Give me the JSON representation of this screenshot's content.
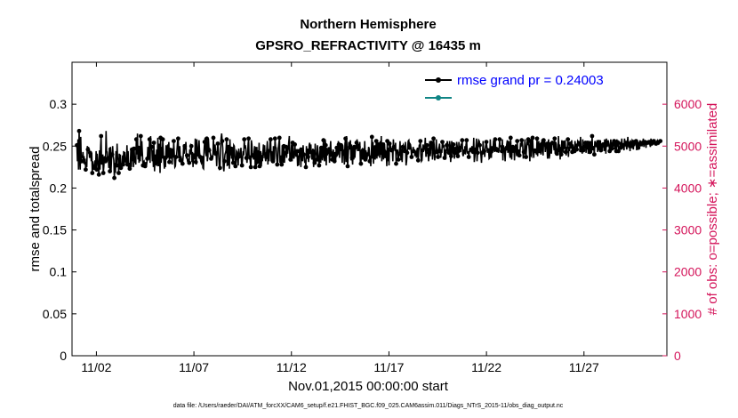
{
  "chart_data": {
    "type": "line",
    "title": "Northern Hemisphere",
    "subtitle": "GPSRO_REFRACTIVITY @ 16435 m",
    "xlabel": "Nov.01,2015 00:00:00 start",
    "ylabel": "rmse and totalspread",
    "y2label": "# of obs: o=possible; ∗=assimilated",
    "footnote": "data file: /Users/raeder/DAI/ATM_forcXX/CAM6_setup/f.e21.FHIST_BGC.f09_025.CAM6assim.011/Diags_NTrS_2015-11/obs_diag_output.nc",
    "x_ticks": [
      "11/02",
      "11/07",
      "11/12",
      "11/17",
      "11/22",
      "11/27"
    ],
    "x_tick_days": [
      2,
      7,
      12,
      17,
      22,
      27
    ],
    "xlim_days": [
      0.75,
      31.25
    ],
    "ylim": [
      0,
      0.35
    ],
    "y_ticks": [
      "0",
      "0.05",
      "0.1",
      "0.15",
      "0.2",
      "0.25",
      "0.3"
    ],
    "y2lim": [
      0,
      7000
    ],
    "y2_ticks": [
      "0",
      "1000",
      "2000",
      "3000",
      "4000",
      "5000",
      "6000"
    ],
    "colors": {
      "rmse": "#000000",
      "spread": "#108585",
      "obs": "#d4145a",
      "legend_text": "#0000ff"
    },
    "series": [
      {
        "name": "rmse grand pr = 0.24003",
        "values": [
          0.251,
          0.232,
          0.258,
          0.222,
          0.268,
          0.238,
          0.222,
          0.261,
          0.232,
          0.238,
          0.236,
          0.243,
          0.232,
          0.238,
          0.228,
          0.235,
          0.222,
          0.231,
          0.225,
          0.25,
          0.246,
          0.249,
          0.244,
          0.236,
          0.242,
          0.241,
          0.232,
          0.242,
          0.218,
          0.232,
          0.226,
          0.222,
          0.224,
          0.233,
          0.225,
          0.244,
          0.222,
          0.241,
          0.232,
          0.229,
          0.216,
          0.245,
          0.222,
          0.249,
          0.262,
          0.228,
          0.23,
          0.24,
          0.218,
          0.226,
          0.238,
          0.232,
          0.232,
          0.268,
          0.244,
          0.243,
          0.235,
          0.238,
          0.224,
          0.248,
          0.22,
          0.249,
          0.221,
          0.236,
          0.24,
          0.25,
          0.238,
          0.233,
          0.212,
          0.23,
          0.218,
          0.244,
          0.227,
          0.253,
          0.234,
          0.236,
          0.218,
          0.241,
          0.226,
          0.24,
          0.224,
          0.226,
          0.223,
          0.239,
          0.228,
          0.244,
          0.229,
          0.243,
          0.233,
          0.234,
          0.228,
          0.251,
          0.228,
          0.244,
          0.222,
          0.23,
          0.223,
          0.227,
          0.245,
          0.225,
          0.246,
          0.232,
          0.249,
          0.225,
          0.247,
          0.23,
          0.237,
          0.228,
          0.258,
          0.24,
          0.265,
          0.234,
          0.248,
          0.23,
          0.25,
          0.232,
          0.262,
          0.238,
          0.256,
          0.242,
          0.227,
          0.231,
          0.232,
          0.228,
          0.226,
          0.231,
          0.225,
          0.23,
          0.235,
          0.249,
          0.236,
          0.237,
          0.258,
          0.23,
          0.262,
          0.247,
          0.249,
          0.232,
          0.245,
          0.225,
          0.254,
          0.22,
          0.24,
          0.227,
          0.231,
          0.246,
          0.226,
          0.26,
          0.239,
          0.226,
          0.253,
          0.218,
          0.26,
          0.23,
          0.249,
          0.235,
          0.258,
          0.24,
          0.232,
          0.223,
          0.236,
          0.225,
          0.251,
          0.234,
          0.238,
          0.252,
          0.238,
          0.255,
          0.231,
          0.243,
          0.248,
          0.235,
          0.245,
          0.228,
          0.247,
          0.236,
          0.256,
          0.238,
          0.225,
          0.226,
          0.237,
          0.237,
          0.246,
          0.257,
          0.259,
          0.236,
          0.236,
          0.25,
          0.233,
          0.238,
          0.235,
          0.232,
          0.229,
          0.237,
          0.252,
          0.241,
          0.25,
          0.246,
          0.255,
          0.235,
          0.239,
          0.232,
          0.231,
          0.235,
          0.23,
          0.246,
          0.24,
          0.251,
          0.25,
          0.231,
          0.243,
          0.225,
          0.239,
          0.238,
          0.234,
          0.259,
          0.231,
          0.228,
          0.258,
          0.243,
          0.24,
          0.245,
          0.257,
          0.242,
          0.237,
          0.232,
          0.23,
          0.233,
          0.236,
          0.224,
          0.223,
          0.245,
          0.255,
          0.26,
          0.242,
          0.238,
          0.259,
          0.232,
          0.237,
          0.259,
          0.245,
          0.248,
          0.242,
          0.239,
          0.235,
          0.239,
          0.235,
          0.237,
          0.26,
          0.245,
          0.242,
          0.252,
          0.241,
          0.242,
          0.226,
          0.245,
          0.253,
          0.245,
          0.234,
          0.223,
          0.224,
          0.245,
          0.26,
          0.265,
          0.256,
          0.248,
          0.226,
          0.22,
          0.232,
          0.24,
          0.242,
          0.245,
          0.258,
          0.226,
          0.251,
          0.227,
          0.249,
          0.223,
          0.258,
          0.239,
          0.247,
          0.235,
          0.249,
          0.232,
          0.23,
          0.251,
          0.25,
          0.238,
          0.226,
          0.226,
          0.244,
          0.243,
          0.236,
          0.227,
          0.247,
          0.237,
          0.238,
          0.24,
          0.248,
          0.23,
          0.227,
          0.235,
          0.244,
          0.239,
          0.258,
          0.247,
          0.251,
          0.247,
          0.236,
          0.23,
          0.238,
          0.252,
          0.259,
          0.234,
          0.239,
          0.231,
          0.225,
          0.257,
          0.252,
          0.236,
          0.239,
          0.234,
          0.243,
          0.25,
          0.225,
          0.249,
          0.227,
          0.249,
          0.231,
          0.245,
          0.232,
          0.254,
          0.226,
          0.235,
          0.244,
          0.226,
          0.237,
          0.232,
          0.243,
          0.252,
          0.241,
          0.251,
          0.237,
          0.232,
          0.237,
          0.247,
          0.256,
          0.228,
          0.244,
          0.232,
          0.244,
          0.256,
          0.258,
          0.232,
          0.244,
          0.234,
          0.232,
          0.25,
          0.23,
          0.235,
          0.259,
          0.249,
          0.248,
          0.237,
          0.228,
          0.232,
          0.248,
          0.254,
          0.26,
          0.23,
          0.232,
          0.239,
          0.228,
          0.251,
          0.243,
          0.23,
          0.25,
          0.23,
          0.244,
          0.239,
          0.249,
          0.236,
          0.246,
          0.241,
          0.248,
          0.255,
          0.262,
          0.236,
          0.234,
          0.238,
          0.252,
          0.232,
          0.254,
          0.241,
          0.235,
          0.237,
          0.252,
          0.242,
          0.238,
          0.238,
          0.244,
          0.226,
          0.239,
          0.227,
          0.244,
          0.246,
          0.243,
          0.225,
          0.246,
          0.236,
          0.232,
          0.251,
          0.24,
          0.238,
          0.23,
          0.233,
          0.225,
          0.25,
          0.239,
          0.247,
          0.237,
          0.231,
          0.251,
          0.254,
          0.243,
          0.252,
          0.238,
          0.234,
          0.243,
          0.247,
          0.225,
          0.246,
          0.23,
          0.253,
          0.241,
          0.24,
          0.234,
          0.251,
          0.244,
          0.235,
          0.227,
          0.237,
          0.249,
          0.23,
          0.248,
          0.244,
          0.233,
          0.246,
          0.257,
          0.237,
          0.232,
          0.258,
          0.251,
          0.227,
          0.248,
          0.239,
          0.243,
          0.248,
          0.248,
          0.23,
          0.245,
          0.256,
          0.237,
          0.244,
          0.234,
          0.232,
          0.246,
          0.232,
          0.232,
          0.243,
          0.231,
          0.245,
          0.248,
          0.239,
          0.24,
          0.256,
          0.252,
          0.236,
          0.253,
          0.244,
          0.251,
          0.245,
          0.23,
          0.251,
          0.241,
          0.246,
          0.228,
          0.253,
          0.259,
          0.231,
          0.262,
          0.242,
          0.226,
          0.241,
          0.255,
          0.246,
          0.249,
          0.257,
          0.233,
          0.252,
          0.236,
          0.228,
          0.249,
          0.234,
          0.249,
          0.236,
          0.248,
          0.246,
          0.254,
          0.258,
          0.244,
          0.253,
          0.249,
          0.244,
          0.255,
          0.23,
          0.229,
          0.245,
          0.246,
          0.234,
          0.245,
          0.237,
          0.234,
          0.256,
          0.234,
          0.245,
          0.241,
          0.234,
          0.24,
          0.241,
          0.249,
          0.247,
          0.232,
          0.239,
          0.226,
          0.243,
          0.261,
          0.235,
          0.255,
          0.229,
          0.245,
          0.251,
          0.234,
          0.245,
          0.256,
          0.235,
          0.254,
          0.238,
          0.252,
          0.254,
          0.236,
          0.256,
          0.242,
          0.262,
          0.232,
          0.25,
          0.252,
          0.234,
          0.254,
          0.252,
          0.238,
          0.244,
          0.243,
          0.226,
          0.256,
          0.232,
          0.248,
          0.227,
          0.253,
          0.255,
          0.248,
          0.247,
          0.245,
          0.248,
          0.232,
          0.258,
          0.249,
          0.247,
          0.244,
          0.254,
          0.229,
          0.246,
          0.243,
          0.244,
          0.234,
          0.239,
          0.239,
          0.256,
          0.242,
          0.233,
          0.247,
          0.231,
          0.249,
          0.251,
          0.248,
          0.246,
          0.244,
          0.255,
          0.227,
          0.232,
          0.242,
          0.249,
          0.256,
          0.257,
          0.248,
          0.253,
          0.252,
          0.248,
          0.237,
          0.243,
          0.245,
          0.249,
          0.244,
          0.244,
          0.238,
          0.244,
          0.242,
          0.236,
          0.246,
          0.248,
          0.233,
          0.244,
          0.251,
          0.251,
          0.256,
          0.238,
          0.232,
          0.233,
          0.245,
          0.252,
          0.248,
          0.249,
          0.248,
          0.26,
          0.238,
          0.238,
          0.251,
          0.244,
          0.248,
          0.232,
          0.242,
          0.256,
          0.238,
          0.249,
          0.254,
          0.252,
          0.234,
          0.241,
          0.259,
          0.252,
          0.233,
          0.242,
          0.243,
          0.258,
          0.241,
          0.246,
          0.237,
          0.247,
          0.249,
          0.253,
          0.244,
          0.236,
          0.245,
          0.242,
          0.255,
          0.255,
          0.248,
          0.251,
          0.236,
          0.246,
          0.234,
          0.244,
          0.251,
          0.256,
          0.242,
          0.241,
          0.242,
          0.256,
          0.251,
          0.231,
          0.238,
          0.256,
          0.251,
          0.24,
          0.252,
          0.247,
          0.235,
          0.249,
          0.242,
          0.245,
          0.255,
          0.25,
          0.238,
          0.236,
          0.255,
          0.242,
          0.248,
          0.243,
          0.253,
          0.25,
          0.257,
          0.24,
          0.238,
          0.246,
          0.243,
          0.25,
          0.24,
          0.252,
          0.257,
          0.244,
          0.241,
          0.244,
          0.237,
          0.244,
          0.245,
          0.244,
          0.246,
          0.247,
          0.25,
          0.241,
          0.243,
          0.26,
          0.231,
          0.237,
          0.246,
          0.248,
          0.259,
          0.232,
          0.242,
          0.253,
          0.257,
          0.256,
          0.251,
          0.246,
          0.239,
          0.23,
          0.242,
          0.24,
          0.256,
          0.245,
          0.244,
          0.237,
          0.247,
          0.252,
          0.255,
          0.248,
          0.242,
          0.246,
          0.245,
          0.235,
          0.236,
          0.258,
          0.243,
          0.236,
          0.25,
          0.242,
          0.247,
          0.257,
          0.246,
          0.243,
          0.258,
          0.244,
          0.247,
          0.249,
          0.245,
          0.248,
          0.242,
          0.246,
          0.258,
          0.249,
          0.251,
          0.244,
          0.244,
          0.258,
          0.233,
          0.251,
          0.245,
          0.244,
          0.232,
          0.25,
          0.247,
          0.252,
          0.257,
          0.242,
          0.251,
          0.256,
          0.242,
          0.236,
          0.26,
          0.242,
          0.234,
          0.248,
          0.249,
          0.242,
          0.248,
          0.233,
          0.247,
          0.252,
          0.244,
          0.238,
          0.256,
          0.242,
          0.237,
          0.246,
          0.239,
          0.243,
          0.254,
          0.249,
          0.257,
          0.256,
          0.25,
          0.235,
          0.243,
          0.242,
          0.258,
          0.245,
          0.237,
          0.248,
          0.256,
          0.251,
          0.258,
          0.253,
          0.245,
          0.232,
          0.256,
          0.239,
          0.238,
          0.257,
          0.26,
          0.243,
          0.236,
          0.247,
          0.244,
          0.247,
          0.243,
          0.24,
          0.259,
          0.238,
          0.247,
          0.256,
          0.244,
          0.251,
          0.25,
          0.24,
          0.252,
          0.258,
          0.243,
          0.239,
          0.257,
          0.256,
          0.254,
          0.243,
          0.251,
          0.255,
          0.25,
          0.235,
          0.253,
          0.258,
          0.235,
          0.239,
          0.252,
          0.245,
          0.241,
          0.252,
          0.254,
          0.254,
          0.251,
          0.245,
          0.259,
          0.241,
          0.255,
          0.252,
          0.241,
          0.247,
          0.239,
          0.262,
          0.245,
          0.252,
          0.234,
          0.249,
          0.24,
          0.257,
          0.25,
          0.242,
          0.254,
          0.247,
          0.248,
          0.257,
          0.243,
          0.239,
          0.249,
          0.247,
          0.258,
          0.237,
          0.249,
          0.244,
          0.253,
          0.25,
          0.247,
          0.257,
          0.243,
          0.252,
          0.248,
          0.245,
          0.244,
          0.256,
          0.25,
          0.251,
          0.246,
          0.249,
          0.256,
          0.255,
          0.252,
          0.256,
          0.243,
          0.261,
          0.245,
          0.25,
          0.241,
          0.258,
          0.245,
          0.252,
          0.247,
          0.249,
          0.254,
          0.242,
          0.253,
          0.246,
          0.254,
          0.241,
          0.249,
          0.256,
          0.243,
          0.256,
          0.252,
          0.242,
          0.262,
          0.245,
          0.25,
          0.248,
          0.24,
          0.256,
          0.254,
          0.249,
          0.251,
          0.257,
          0.243,
          0.249,
          0.255,
          0.246,
          0.246,
          0.257,
          0.245,
          0.253,
          0.246,
          0.25,
          0.252,
          0.252,
          0.244,
          0.258,
          0.253,
          0.241,
          0.259,
          0.249,
          0.252,
          0.257,
          0.254,
          0.249,
          0.244,
          0.25,
          0.258,
          0.246,
          0.247,
          0.255,
          0.25,
          0.251,
          0.256,
          0.246,
          0.257,
          0.249,
          0.244,
          0.258,
          0.249,
          0.257,
          0.244,
          0.256,
          0.254,
          0.254,
          0.248,
          0.252,
          0.259,
          0.249,
          0.251,
          0.248,
          0.245,
          0.259,
          0.252,
          0.254,
          0.25,
          0.246,
          0.254,
          0.261,
          0.25,
          0.248,
          0.253,
          0.244,
          0.257,
          0.251,
          0.25,
          0.257,
          0.256,
          0.246,
          0.255,
          0.25,
          0.254,
          0.252,
          0.256,
          0.245,
          0.257,
          0.252,
          0.248,
          0.255,
          0.251,
          0.257,
          0.252,
          0.254,
          0.252,
          0.251,
          0.254,
          0.259,
          0.249,
          0.257,
          0.255,
          0.252,
          0.248,
          0.256,
          0.254,
          0.252,
          0.257,
          0.252,
          0.255,
          0.252,
          0.249,
          0.259,
          0.253,
          0.255,
          0.254,
          0.252,
          0.256,
          0.252,
          0.258,
          0.254,
          0.253,
          0.255,
          0.253,
          0.256,
          0.254,
          0.257,
          0.254,
          0.254,
          0.256,
          0.255,
          0.255
        ]
      }
    ]
  }
}
